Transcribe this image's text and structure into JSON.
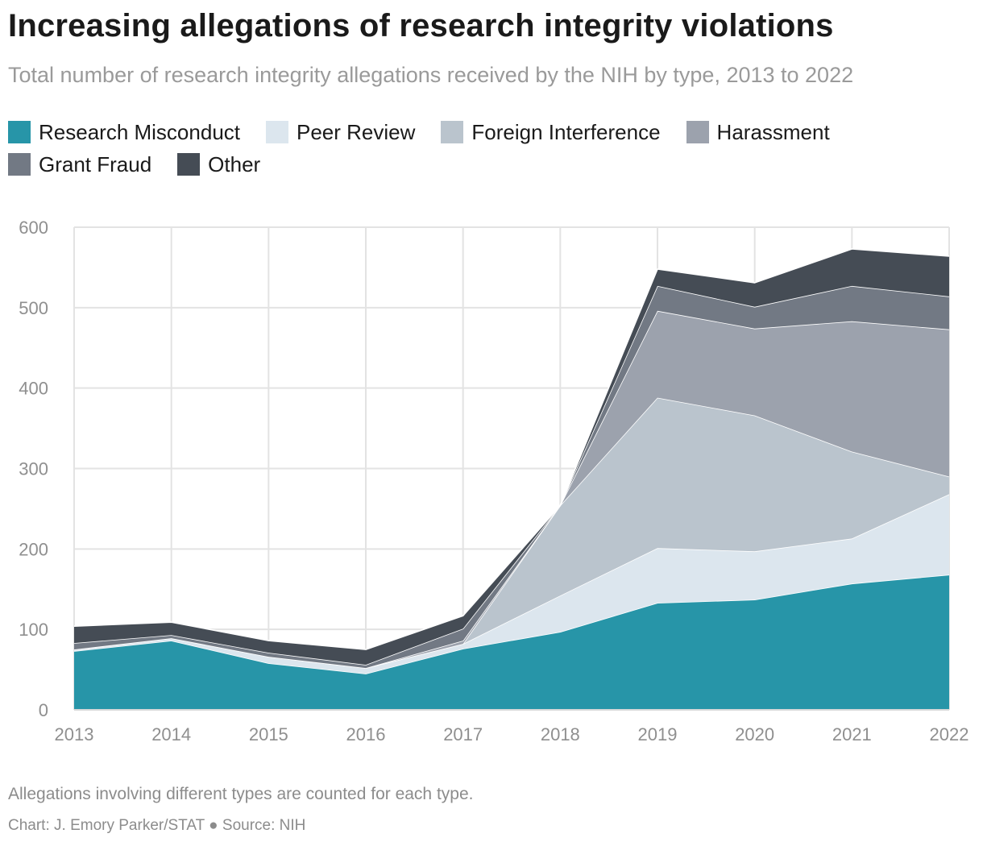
{
  "title": "Increasing allegations of research integrity violations",
  "subtitle": "Total number of research integrity allegations received by the NIH by type, 2013 to 2022",
  "note": "Allegations involving different types are counted for each type.",
  "credit": "Chart: J. Emory Parker/STAT ● Source: NIH",
  "chart_data": {
    "type": "area",
    "stacked": true,
    "x": [
      "2013",
      "2014",
      "2015",
      "2016",
      "2017",
      "2018",
      "2019",
      "2020",
      "2021",
      "2022"
    ],
    "ylim": [
      0,
      600
    ],
    "yticks": [
      "0",
      "100",
      "200",
      "300",
      "400",
      "500",
      "600"
    ],
    "grid": true,
    "legend_position": "top-left",
    "xlabel": "",
    "ylabel": "",
    "series": [
      {
        "name": "Research Misconduct",
        "color": "#2795a8",
        "values": [
          73,
          86,
          58,
          45,
          76,
          97,
          133,
          137,
          157,
          168
        ]
      },
      {
        "name": "Peer Review",
        "color": "#dce6ee",
        "values": [
          2,
          3,
          8,
          7,
          6,
          45,
          68,
          60,
          56,
          100
        ]
      },
      {
        "name": "Foreign Interference",
        "color": "#bac4cd",
        "values": [
          0,
          0,
          0,
          0,
          0,
          112,
          187,
          169,
          108,
          22
        ]
      },
      {
        "name": "Harassment",
        "color": "#9ca2ad",
        "values": [
          0,
          0,
          0,
          0,
          4,
          0,
          108,
          108,
          162,
          183
        ]
      },
      {
        "name": "Grant Fraud",
        "color": "#727984",
        "values": [
          8,
          4,
          5,
          4,
          15,
          0,
          31,
          27,
          44,
          41
        ]
      },
      {
        "name": "Other",
        "color": "#454c55",
        "values": [
          21,
          16,
          15,
          19,
          16,
          0,
          21,
          30,
          46,
          50
        ]
      }
    ]
  }
}
